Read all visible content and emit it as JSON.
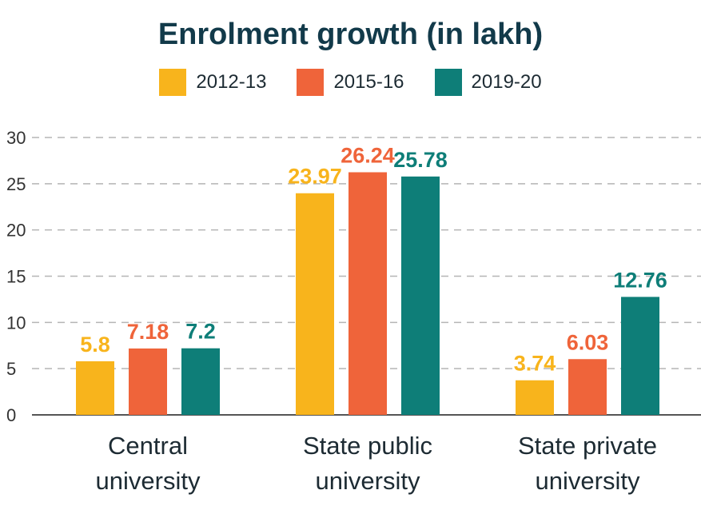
{
  "chart_data": {
    "type": "bar",
    "title": "Enrolment growth (in lakh)",
    "categories": [
      [
        "Central",
        "university"
      ],
      [
        "State public",
        "university"
      ],
      [
        "State private",
        "university"
      ]
    ],
    "series": [
      {
        "name": "2012-13",
        "color": "#f8b41c",
        "values": [
          5.8,
          23.97,
          3.74
        ],
        "labels": [
          "5.8",
          "23.97",
          "3.74"
        ]
      },
      {
        "name": "2015-16",
        "color": "#ef643a",
        "values": [
          7.18,
          26.24,
          6.03
        ],
        "labels": [
          "7.18",
          "26.24",
          "6.03"
        ]
      },
      {
        "name": "2019-20",
        "color": "#0e7e78",
        "values": [
          7.2,
          25.78,
          12.76
        ],
        "labels": [
          "7.2",
          "25.78",
          "12.76"
        ]
      }
    ],
    "ylim": [
      0,
      30
    ],
    "yticks": [
      0,
      5,
      10,
      15,
      20,
      25,
      30
    ],
    "grid": true,
    "legend": "top-center"
  }
}
